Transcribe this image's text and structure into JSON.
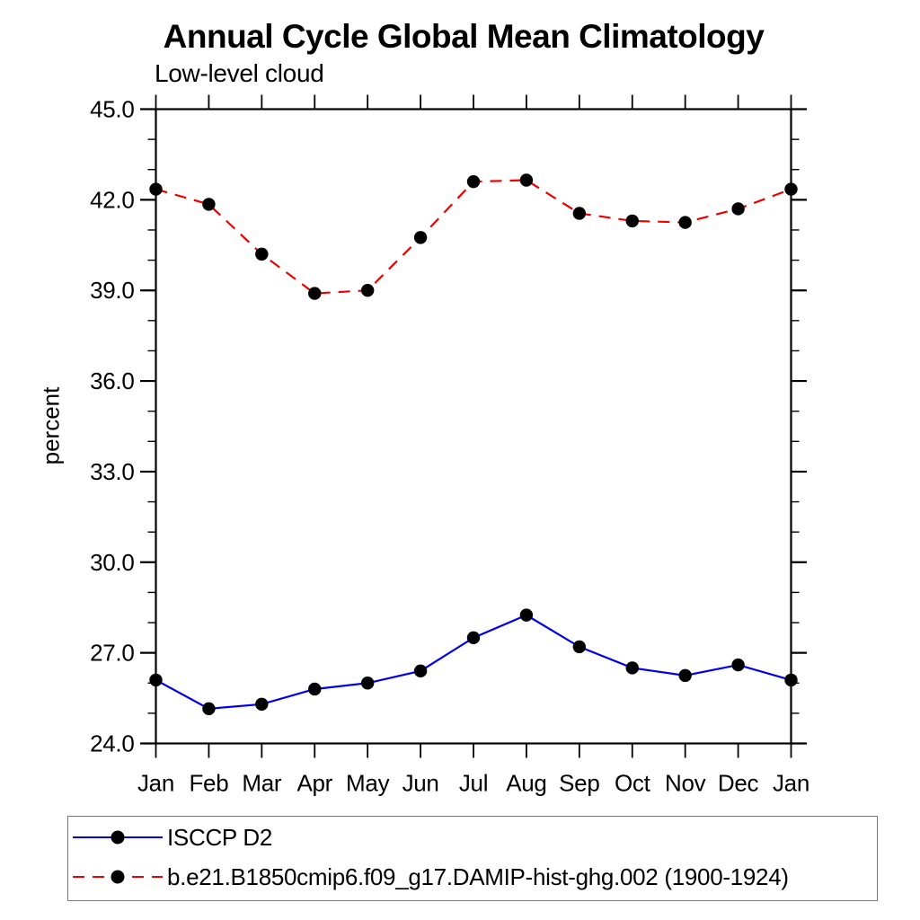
{
  "title": "Annual Cycle Global Mean Climatology",
  "subtitle": "Low-level cloud",
  "ylabel": "percent",
  "colors": {
    "series1": "#0000ee",
    "series2": "#ee0000",
    "marker": "#000000",
    "axis": "#000000",
    "legend_border": "#777777"
  },
  "legend": {
    "position": "bottom-left-box",
    "marker_icon": "filled-circle"
  },
  "chart_data": {
    "type": "line",
    "title": "Annual Cycle Global Mean Climatology",
    "subtitle": "Low-level cloud",
    "ylabel": "percent",
    "categories": [
      "Jan",
      "Feb",
      "Mar",
      "Apr",
      "May",
      "Jun",
      "Jul",
      "Aug",
      "Sep",
      "Oct",
      "Nov",
      "Dec",
      "Jan"
    ],
    "series": [
      {
        "name": "ISCCP D2",
        "color": "#0000ee",
        "line_style": "solid",
        "marker": "filled-circle",
        "marker_color": "#000000",
        "values": [
          26.1,
          25.15,
          25.3,
          25.8,
          26.0,
          26.4,
          27.5,
          28.25,
          27.2,
          26.5,
          26.25,
          26.6,
          26.1
        ]
      },
      {
        "name": "b.e21.B1850cmip6.f09_g17.DAMIP-hist-ghg.002 (1900-1924)",
        "color": "#ee0000",
        "line_style": "dashed",
        "marker": "filled-circle",
        "marker_color": "#000000",
        "values": [
          42.35,
          41.85,
          40.2,
          38.9,
          39.0,
          40.75,
          42.6,
          42.65,
          41.55,
          41.3,
          41.25,
          41.7,
          42.35
        ]
      }
    ],
    "ylim": [
      24,
      45
    ],
    "ytick_labels": [
      "24.0",
      "27.0",
      "30.0",
      "33.0",
      "36.0",
      "39.0",
      "42.0",
      "45.0"
    ],
    "ytick_major_step": 3,
    "ytick_minor_step": 1,
    "xtick_mode": "one-tick-per-month-top-and-bottom",
    "grid": false,
    "legend_position": "bottom-left-box"
  }
}
